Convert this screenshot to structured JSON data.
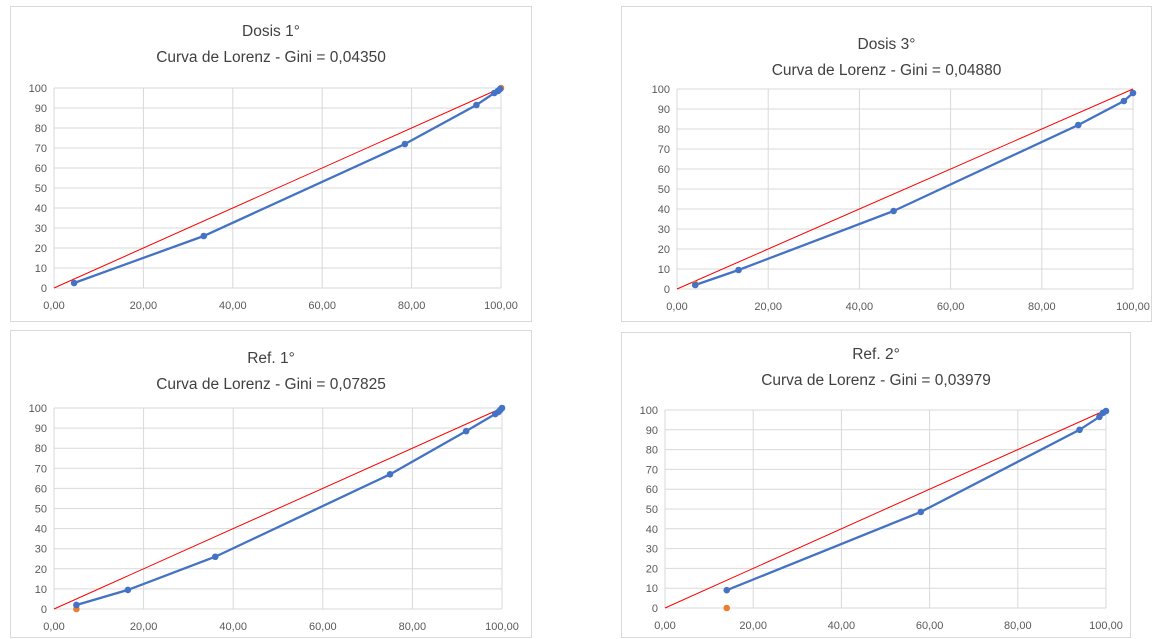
{
  "chart_data": [
    {
      "type": "line",
      "title_line1": "Dosis 1°",
      "title_line2": "Curva de Lorenz - Gini = 0,04350",
      "xlim": [
        0,
        100
      ],
      "ylim": [
        0,
        100
      ],
      "x_ticks": [
        "0,00",
        "20,00",
        "40,00",
        "60,00",
        "80,00",
        "100,00"
      ],
      "y_ticks": [
        "0",
        "10",
        "20",
        "30",
        "40",
        "50",
        "60",
        "70",
        "80",
        "90",
        "100"
      ],
      "grid": true,
      "series": [
        {
          "color": "#4472c4",
          "x": [
            4.5,
            33.5,
            78.5,
            94.5,
            98.5,
            99.3,
            99.8
          ],
          "y": [
            2.5,
            26,
            72,
            91.5,
            97.5,
            98.5,
            99.5
          ]
        },
        {
          "color": "#ed7d31",
          "x": [
            100
          ],
          "y": [
            100
          ]
        }
      ],
      "reference_line": {
        "color": "#ff0000",
        "x": [
          0,
          100
        ],
        "y": [
          0,
          100
        ]
      }
    },
    {
      "type": "line",
      "title_line1": "Dosis 3°",
      "title_line2": "Curva de Lorenz - Gini = 0,04880",
      "xlim": [
        0,
        100
      ],
      "ylim": [
        0,
        100
      ],
      "x_ticks": [
        "0,00",
        "20,00",
        "40,00",
        "60,00",
        "80,00",
        "100,00"
      ],
      "y_ticks": [
        "0",
        "10",
        "20",
        "30",
        "40",
        "50",
        "60",
        "70",
        "80",
        "90",
        "100"
      ],
      "grid": true,
      "series": [
        {
          "color": "#4472c4",
          "x": [
            4,
            13.5,
            47.5,
            88,
            98,
            100
          ],
          "y": [
            2,
            9.5,
            39,
            82,
            94,
            98
          ]
        },
        {
          "color": "#ed7d31",
          "x": [
            4
          ],
          "y": [
            2.5
          ]
        }
      ],
      "reference_line": {
        "color": "#ff0000",
        "x": [
          0,
          100
        ],
        "y": [
          0,
          100
        ]
      }
    },
    {
      "type": "line",
      "title_line1": "Ref. 1°",
      "title_line2": "Curva de Lorenz - Gini = 0,07825",
      "xlim": [
        0,
        100
      ],
      "ylim": [
        0,
        100
      ],
      "x_ticks": [
        "0,00",
        "20,00",
        "40,00",
        "60,00",
        "80,00",
        "100,00"
      ],
      "y_ticks": [
        "0",
        "10",
        "20",
        "30",
        "40",
        "50",
        "60",
        "70",
        "80",
        "90",
        "100"
      ],
      "grid": true,
      "series": [
        {
          "color": "#4472c4",
          "x": [
            5,
            16.5,
            36,
            75,
            92,
            98.5,
            99.2,
            99.6,
            100
          ],
          "y": [
            2,
            9.5,
            26,
            67,
            88.5,
            97,
            98,
            99,
            100
          ]
        },
        {
          "color": "#ed7d31",
          "x": [
            5
          ],
          "y": [
            0
          ]
        }
      ],
      "reference_line": {
        "color": "#ff0000",
        "x": [
          0,
          100
        ],
        "y": [
          0,
          100
        ]
      }
    },
    {
      "type": "line",
      "title_line1": "Ref. 2°",
      "title_line2": "Curva de Lorenz - Gini = 0,03979",
      "xlim": [
        0,
        100
      ],
      "ylim": [
        0,
        100
      ],
      "x_ticks": [
        "0,00",
        "20,00",
        "40,00",
        "60,00",
        "80,00",
        "100,00"
      ],
      "y_ticks": [
        "0",
        "10",
        "20",
        "30",
        "40",
        "50",
        "60",
        "70",
        "80",
        "90",
        "100"
      ],
      "grid": true,
      "series": [
        {
          "color": "#4472c4",
          "x": [
            14,
            58,
            94,
            98.5,
            99.3,
            100
          ],
          "y": [
            9,
            48.5,
            90,
            96.5,
            98.5,
            99.5
          ]
        },
        {
          "color": "#ed7d31",
          "x": [
            14
          ],
          "y": [
            0
          ]
        }
      ],
      "reference_line": {
        "color": "#ff0000",
        "x": [
          0,
          100
        ],
        "y": [
          0,
          100
        ]
      }
    }
  ]
}
